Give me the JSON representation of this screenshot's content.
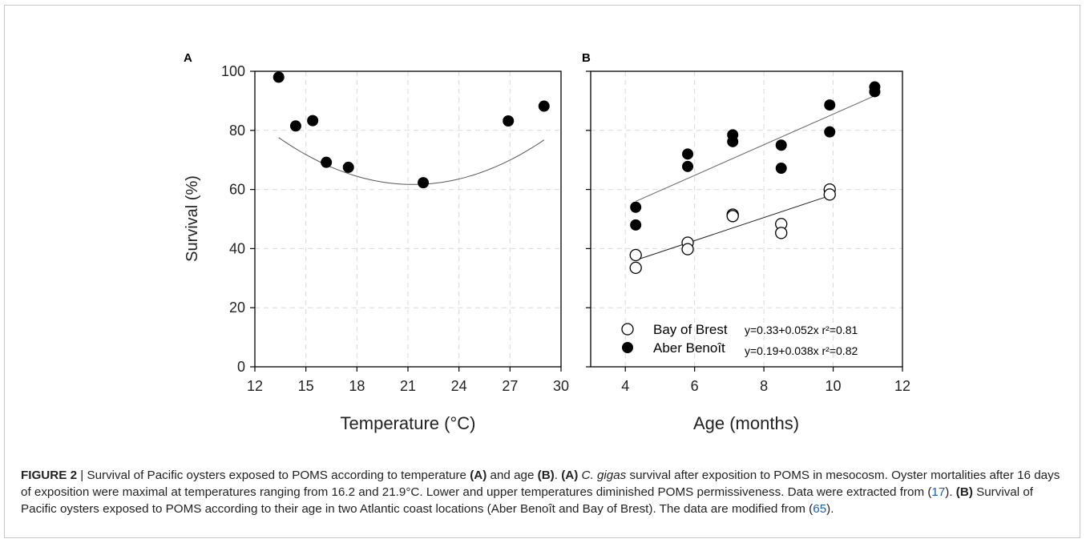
{
  "chart_data": [
    {
      "panel": "A",
      "type": "scatter",
      "xlabel": "Temperature (°C)",
      "ylabel": "Survival (%)",
      "xlim": [
        12,
        30
      ],
      "ylim": [
        0,
        100
      ],
      "xticks": [
        12,
        15,
        18,
        21,
        24,
        27,
        30
      ],
      "yticks": [
        0,
        20,
        40,
        60,
        80,
        100
      ],
      "grid": true,
      "series": [
        {
          "marker": "filled",
          "points": [
            [
              13.4,
              98
            ],
            [
              14.4,
              81.5
            ],
            [
              15.4,
              83.3
            ],
            [
              16.2,
              69.2
            ],
            [
              17.5,
              67.5
            ],
            [
              21.9,
              62.3
            ],
            [
              26.9,
              83.2
            ],
            [
              29.0,
              88.2
            ]
          ]
        }
      ],
      "fit": {
        "type": "quadratic",
        "a": 0.2543,
        "h": 21.3,
        "k": 61.7,
        "x_range": [
          13.4,
          29.0
        ]
      }
    },
    {
      "panel": "B",
      "type": "scatter",
      "xlabel": "Age (months)",
      "ylabel": "",
      "xlim": [
        3,
        12
      ],
      "ylim": [
        0,
        100
      ],
      "xticks": [
        4,
        6,
        8,
        10,
        12
      ],
      "yticks": [
        0,
        20,
        40,
        60,
        80,
        100
      ],
      "grid": true,
      "legend_position": "bottom-left",
      "series": [
        {
          "name": "Bay of Brest",
          "marker": "open",
          "equation": "y=0.33+0.052x r²=0.81",
          "points": [
            [
              4.3,
              37.8
            ],
            [
              4.3,
              33.5
            ],
            [
              5.8,
              42
            ],
            [
              5.8,
              39.8
            ],
            [
              7.1,
              51.5
            ],
            [
              7.1,
              51
            ],
            [
              8.5,
              48.3
            ],
            [
              8.5,
              45.3
            ],
            [
              9.9,
              60
            ],
            [
              9.9,
              58.3
            ]
          ],
          "fit": {
            "slope": 3.9,
            "intercept": 19.3,
            "x_range": [
              4.3,
              9.9
            ]
          }
        },
        {
          "name": "Aber Benoît",
          "marker": "filled",
          "equation": "y=0.19+0.038x r²=0.82",
          "points": [
            [
              4.3,
              54
            ],
            [
              4.3,
              48
            ],
            [
              5.8,
              72
            ],
            [
              5.8,
              67.8
            ],
            [
              7.1,
              78.5
            ],
            [
              7.1,
              76.2
            ],
            [
              8.5,
              75
            ],
            [
              8.5,
              67.2
            ],
            [
              9.9,
              88.6
            ],
            [
              9.9,
              79.5
            ],
            [
              11.2,
              94.7
            ],
            [
              11.2,
              93.1
            ]
          ],
          "fit": {
            "slope": 5.18,
            "intercept": 33.7,
            "x_range": [
              4.3,
              11.2
            ]
          }
        }
      ]
    }
  ],
  "caption": {
    "label": "FIGURE 2",
    "sep": " | ",
    "t1": "Survival of Pacific oysters exposed to POMS according to temperature ",
    "t2": "(A)",
    "t3": " and age ",
    "t4": "(B)",
    "t5": ". ",
    "t6": "(A)",
    "t7": " ",
    "t8": "C. gigas",
    "t9": " survival after exposition to POMS in mesocosm. Oyster mortalities after 16 days of exposition were maximal at temperatures ranging from 16.2 and 21.9°C. Lower and upper temperatures diminished POMS permissiveness. Data were extracted from (",
    "ref1": "17",
    "t10": "). ",
    "t11": "(B)",
    "t12": " Survival of Pacific oysters exposed to POMS according to their age in two Atlantic coast locations (Aber Benoît and Bay of Brest). The data are modified from (",
    "ref2": "65",
    "t13": ")."
  }
}
